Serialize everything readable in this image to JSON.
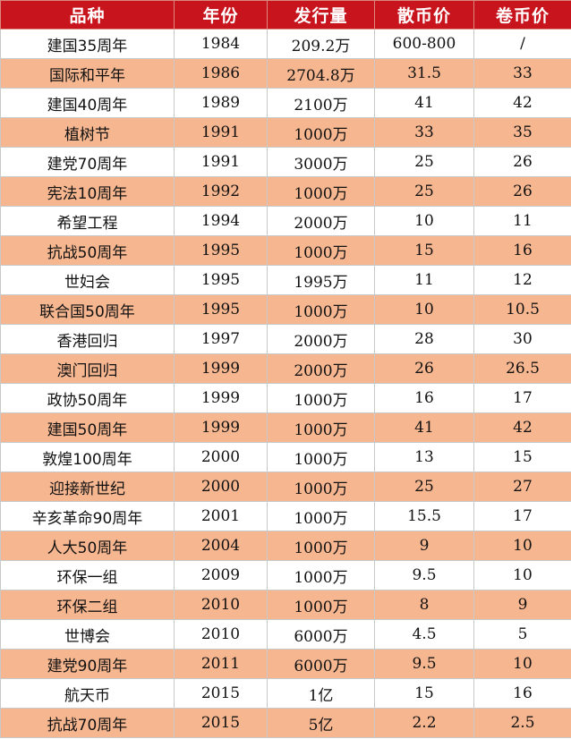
{
  "header": {
    "name": "品种",
    "year": "年份",
    "issuance": "发行量",
    "loose_price": "散币价",
    "roll_price": "卷币价"
  },
  "rows": [
    {
      "name": "建国35周年",
      "year": "1984",
      "issuance": "209.2万",
      "loose": "600-800",
      "roll": "/"
    },
    {
      "name": "国际和平年",
      "year": "1986",
      "issuance": "2704.8万",
      "loose": "31.5",
      "roll": "33"
    },
    {
      "name": "建国40周年",
      "year": "1989",
      "issuance": "2100万",
      "loose": "41",
      "roll": "42"
    },
    {
      "name": "植树节",
      "year": "1991",
      "issuance": "1000万",
      "loose": "33",
      "roll": "35"
    },
    {
      "name": "建党70周年",
      "year": "1991",
      "issuance": "3000万",
      "loose": "25",
      "roll": "26"
    },
    {
      "name": "宪法10周年",
      "year": "1992",
      "issuance": "1000万",
      "loose": "25",
      "roll": "26"
    },
    {
      "name": "希望工程",
      "year": "1994",
      "issuance": "2000万",
      "loose": "10",
      "roll": "11"
    },
    {
      "name": "抗战50周年",
      "year": "1995",
      "issuance": "1000万",
      "loose": "15",
      "roll": "16"
    },
    {
      "name": "世妇会",
      "year": "1995",
      "issuance": "1995万",
      "loose": "11",
      "roll": "12"
    },
    {
      "name": "联合国50周年",
      "year": "1995",
      "issuance": "1000万",
      "loose": "10",
      "roll": "10.5"
    },
    {
      "name": "香港回归",
      "year": "1997",
      "issuance": "2000万",
      "loose": "28",
      "roll": "30"
    },
    {
      "name": "澳门回归",
      "year": "1999",
      "issuance": "2000万",
      "loose": "26",
      "roll": "26.5"
    },
    {
      "name": "政协50周年",
      "year": "1999",
      "issuance": "1000万",
      "loose": "16",
      "roll": "17"
    },
    {
      "name": "建国50周年",
      "year": "1999",
      "issuance": "1000万",
      "loose": "41",
      "roll": "42"
    },
    {
      "name": "敦煌100周年",
      "year": "2000",
      "issuance": "1000万",
      "loose": "13",
      "roll": "15"
    },
    {
      "name": "迎接新世纪",
      "year": "2000",
      "issuance": "1000万",
      "loose": "25",
      "roll": "27"
    },
    {
      "name": "辛亥革命90周年",
      "year": "2001",
      "issuance": "1000万",
      "loose": "15.5",
      "roll": "17"
    },
    {
      "name": "人大50周年",
      "year": "2004",
      "issuance": "1000万",
      "loose": "9",
      "roll": "10"
    },
    {
      "name": "环保一组",
      "year": "2009",
      "issuance": "1000万",
      "loose": "9.5",
      "roll": "10"
    },
    {
      "name": "环保二组",
      "year": "2010",
      "issuance": "1000万",
      "loose": "8",
      "roll": "9"
    },
    {
      "name": "世博会",
      "year": "2010",
      "issuance": "6000万",
      "loose": "4.5",
      "roll": "5"
    },
    {
      "name": "建党90周年",
      "year": "2011",
      "issuance": "6000万",
      "loose": "9.5",
      "roll": "10"
    },
    {
      "name": "航天币",
      "year": "2015",
      "issuance": "1亿",
      "loose": "15",
      "roll": "16"
    },
    {
      "name": "抗战70周年",
      "year": "2015",
      "issuance": "5亿",
      "loose": "2.2",
      "roll": "2.5"
    }
  ],
  "colors": {
    "header_bg": "#c8141c",
    "stripe_bg": "#f6b690"
  }
}
